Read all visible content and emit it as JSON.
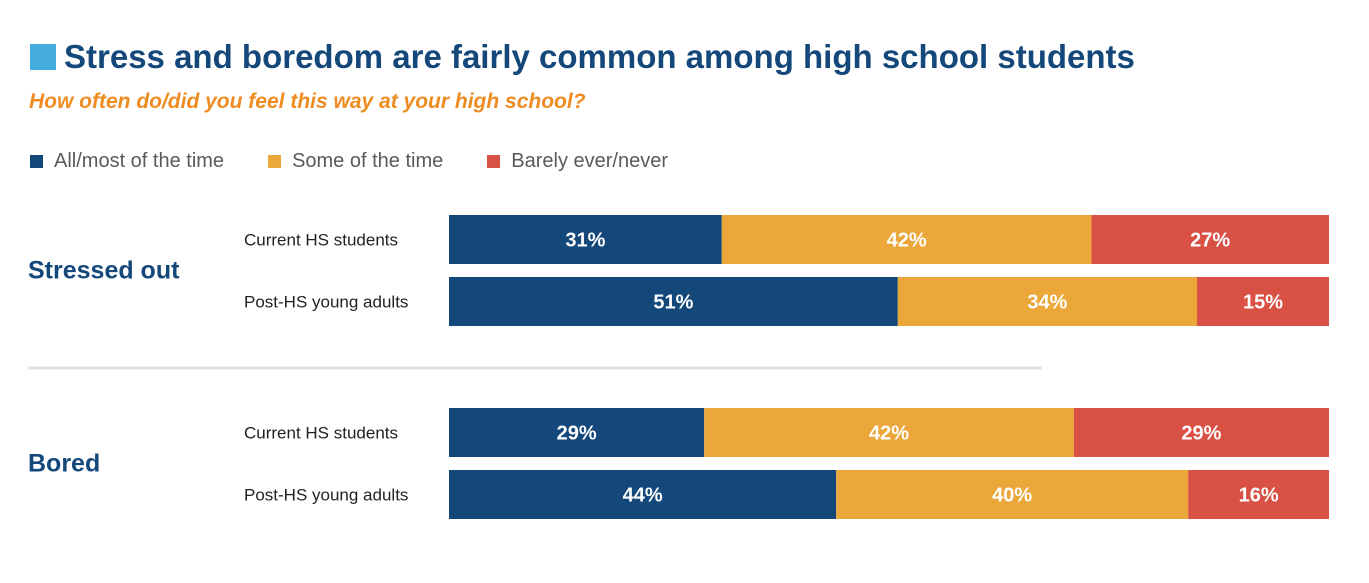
{
  "title": "Stress and boredom are fairly common among high school students",
  "subtitle": "How often do/did you feel this way at your high school?",
  "colors": {
    "title_square": "#45ace0",
    "title": "#14477a",
    "subtitle": "#ee8c22",
    "divider": "#e3e3e3"
  },
  "legend": [
    {
      "label": "All/most of the time",
      "color": "#14477a"
    },
    {
      "label": "Some of the time",
      "color": "#eba73a"
    },
    {
      "label": "Barely ever/never",
      "color": "#d95044"
    }
  ],
  "chart_data": {
    "type": "bar",
    "orientation": "horizontal",
    "stacked": true,
    "unit": "%",
    "xlim": [
      0,
      100
    ],
    "legend_position": "top-left",
    "grid": false,
    "series_names": [
      "All/most of the time",
      "Some of the time",
      "Barely ever/never"
    ],
    "groups": [
      {
        "label": "Stressed out",
        "rows": [
          {
            "label": "Current HS students",
            "values": [
              31,
              42,
              27
            ]
          },
          {
            "label": "Post-HS young adults",
            "values": [
              51,
              34,
              15
            ]
          }
        ]
      },
      {
        "label": "Bored",
        "rows": [
          {
            "label": "Current HS students",
            "values": [
              29,
              42,
              29
            ]
          },
          {
            "label": "Post-HS young adults",
            "values": [
              44,
              40,
              16
            ]
          }
        ]
      }
    ]
  }
}
